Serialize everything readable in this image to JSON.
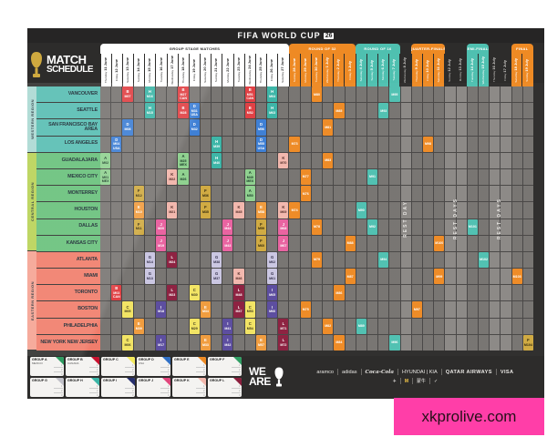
{
  "title": {
    "text": "FIFA WORLD CUP",
    "badge": "26"
  },
  "logo": {
    "line1": "MATCH",
    "line2": "SCHEDULE",
    "trophy": "fifa-world-cup-trophy"
  },
  "regions": [
    {
      "name": "WESTERN REGION",
      "rows": 4,
      "strip_color": "#a9d8d2",
      "city_color": "#55bcb1"
    },
    {
      "name": "CENTRAL REGION",
      "rows": 6,
      "strip_color": "#b8d254",
      "city_color": "#65c078"
    },
    {
      "name": "EASTERN REGION",
      "rows": 6,
      "strip_color": "#f5a291",
      "city_color": "#f07a68"
    }
  ],
  "cities": [
    "VANCOUVER",
    "SEATTLE",
    "SAN FRANCISCO BAY AREA",
    "LOS ANGELES",
    "GUADALAJARA",
    "MEXICO CITY",
    "MONTERREY",
    "HOUSTON",
    "DALLAS",
    "KANSAS CITY",
    "ATLANTA",
    "MIAMI",
    "TORONTO",
    "BOSTON",
    "PHILADELPHIA",
    "NEW YORK NEW JERSEY"
  ],
  "stages": [
    {
      "label": "GROUP STAGE MATCHES",
      "start": 0,
      "end": 16,
      "color": "#ffffff",
      "text": "#2a2a2a"
    },
    {
      "label": "ROUND OF 32",
      "start": 17,
      "end": 22,
      "color": "#ee8a24",
      "text": "#ffffff"
    },
    {
      "label": "ROUND OF 16",
      "start": 23,
      "end": 26,
      "color": "#4fc0b0",
      "text": "#ffffff"
    },
    {
      "label": "QUARTER-FINALS",
      "start": 28,
      "end": 30,
      "color": "#ee8a24",
      "text": "#ffffff"
    },
    {
      "label": "SEMI-FINALS",
      "start": 33,
      "end": 34,
      "color": "#4fc0b0",
      "text": "#ffffff"
    },
    {
      "label": "FINAL",
      "start": 37,
      "end": 38,
      "color": "#ee8a24",
      "text": "#ffffff"
    }
  ],
  "rest_labels": [
    {
      "start": 27,
      "end": 27,
      "label": "REST DAY"
    },
    {
      "start": 31,
      "end": 32,
      "label": "REST DAYS"
    },
    {
      "start": 35,
      "end": 36,
      "label": "REST DAYS"
    }
  ],
  "columns": [
    {
      "day": "Thursday",
      "date": "11 June"
    },
    {
      "day": "Friday",
      "date": "12 June"
    },
    {
      "day": "Saturday",
      "date": "13 June"
    },
    {
      "day": "Sunday",
      "date": "14 June"
    },
    {
      "day": "Monday",
      "date": "15 June"
    },
    {
      "day": "Tuesday",
      "date": "16 June"
    },
    {
      "day": "Wednesday",
      "date": "17 June"
    },
    {
      "day": "Thursday",
      "date": "18 June"
    },
    {
      "day": "Friday",
      "date": "19 June"
    },
    {
      "day": "Saturday",
      "date": "20 June"
    },
    {
      "day": "Sunday",
      "date": "21 June"
    },
    {
      "day": "Monday",
      "date": "22 June"
    },
    {
      "day": "Tuesday",
      "date": "23 June"
    },
    {
      "day": "Wednesday",
      "date": "24 June"
    },
    {
      "day": "Thursday",
      "date": "25 June"
    },
    {
      "day": "Friday",
      "date": "26 June"
    },
    {
      "day": "Saturday",
      "date": "27 June"
    },
    {
      "day": "Sunday",
      "date": "28 June"
    },
    {
      "day": "Monday",
      "date": "29 June"
    },
    {
      "day": "Tuesday",
      "date": "30 June"
    },
    {
      "day": "Wednesday",
      "date": "1 July"
    },
    {
      "day": "Thursday",
      "date": "2 July"
    },
    {
      "day": "Friday",
      "date": "3 July"
    },
    {
      "day": "Saturday",
      "date": "4 July"
    },
    {
      "day": "Sunday",
      "date": "5 July"
    },
    {
      "day": "Monday",
      "date": "6 July"
    },
    {
      "day": "Tuesday",
      "date": "7 July"
    },
    {
      "day": "Wednesday",
      "date": "8 July"
    },
    {
      "day": "Thursday",
      "date": "9 July"
    },
    {
      "day": "Friday",
      "date": "10 July"
    },
    {
      "day": "Saturday",
      "date": "11 July"
    },
    {
      "day": "Sunday",
      "date": "12 July"
    },
    {
      "day": "Monday",
      "date": "13 July"
    },
    {
      "day": "Tuesday",
      "date": "14 July"
    },
    {
      "day": "Wednesday",
      "date": "15 July"
    },
    {
      "day": "Thursday",
      "date": "16 July"
    },
    {
      "day": "Friday",
      "date": "17 July"
    },
    {
      "day": "Saturday",
      "date": "18 July"
    },
    {
      "day": "Sunday",
      "date": "19 July"
    }
  ],
  "group_colors": {
    "A": {
      "bg": "#8ed08e",
      "fg": "#143423"
    },
    "B": {
      "bg": "#e03d41",
      "fg": "#ffffff"
    },
    "C": {
      "bg": "#f2e362",
      "fg": "#3a351a"
    },
    "D": {
      "bg": "#3b7dd4",
      "fg": "#ffffff"
    },
    "E": {
      "bg": "#f09b3c",
      "fg": "#ffffff"
    },
    "F": {
      "bg": "#cfa93f",
      "fg": "#2a2208"
    },
    "G": {
      "bg": "#cac6e2",
      "fg": "#2d2a45"
    },
    "H": {
      "bg": "#3ab5a6",
      "fg": "#ffffff"
    },
    "I": {
      "bg": "#5a4b9e",
      "fg": "#ffffff"
    },
    "J": {
      "bg": "#e9619f",
      "fg": "#ffffff"
    },
    "K": {
      "bg": "#f2b7ac",
      "fg": "#4a2420"
    },
    "L": {
      "bg": "#8c1f3e",
      "fg": "#ffffff"
    },
    "R32": {
      "bg": "#ee8a24",
      "fg": "#ffffff"
    },
    "R16": {
      "bg": "#4fc0b0",
      "fg": "#ffffff"
    },
    "QF": {
      "bg": "#ee8a24",
      "fg": "#ffffff"
    },
    "SF": {
      "bg": "#4fc0b0",
      "fg": "#ffffff"
    },
    "3P": {
      "bg": "#ee8a24",
      "fg": "#ffffff"
    }
  },
  "match_format": [
    "match_no",
    "city_index",
    "date_col",
    "group_or_stage",
    "host_tag"
  ],
  "matches": [
    [
      1,
      5,
      0,
      "A",
      "MEX"
    ],
    [
      2,
      4,
      0,
      "A",
      ""
    ],
    [
      3,
      12,
      1,
      "B",
      "CAN"
    ],
    [
      4,
      3,
      1,
      "D",
      "USA"
    ],
    [
      5,
      13,
      2,
      "C",
      ""
    ],
    [
      6,
      15,
      2,
      "C",
      ""
    ],
    [
      7,
      0,
      2,
      "B",
      ""
    ],
    [
      8,
      2,
      2,
      "D",
      ""
    ],
    [
      9,
      14,
      3,
      "E",
      ""
    ],
    [
      10,
      7,
      3,
      "E",
      ""
    ],
    [
      11,
      8,
      3,
      "F",
      ""
    ],
    [
      12,
      6,
      3,
      "F",
      ""
    ],
    [
      13,
      11,
      4,
      "G",
      ""
    ],
    [
      14,
      10,
      4,
      "G",
      ""
    ],
    [
      15,
      1,
      4,
      "H",
      ""
    ],
    [
      16,
      0,
      4,
      "H",
      ""
    ],
    [
      17,
      15,
      5,
      "I",
      ""
    ],
    [
      18,
      13,
      5,
      "I",
      ""
    ],
    [
      19,
      9,
      5,
      "J",
      ""
    ],
    [
      20,
      8,
      5,
      "J",
      ""
    ],
    [
      21,
      7,
      6,
      "K",
      ""
    ],
    [
      22,
      5,
      6,
      "K",
      ""
    ],
    [
      23,
      12,
      6,
      "L",
      ""
    ],
    [
      24,
      10,
      6,
      "L",
      ""
    ],
    [
      25,
      4,
      7,
      "A",
      "MEX"
    ],
    [
      26,
      5,
      7,
      "A",
      ""
    ],
    [
      27,
      0,
      7,
      "B",
      "CAN"
    ],
    [
      28,
      1,
      7,
      "B",
      ""
    ],
    [
      29,
      14,
      8,
      "C",
      ""
    ],
    [
      30,
      12,
      8,
      "C",
      ""
    ],
    [
      31,
      1,
      8,
      "D",
      "USA"
    ],
    [
      32,
      2,
      8,
      "D",
      ""
    ],
    [
      33,
      15,
      9,
      "E",
      ""
    ],
    [
      34,
      13,
      9,
      "E",
      ""
    ],
    [
      35,
      7,
      9,
      "F",
      ""
    ],
    [
      36,
      6,
      9,
      "F",
      ""
    ],
    [
      37,
      11,
      10,
      "G",
      ""
    ],
    [
      38,
      10,
      10,
      "G",
      ""
    ],
    [
      39,
      3,
      10,
      "H",
      ""
    ],
    [
      40,
      4,
      10,
      "H",
      ""
    ],
    [
      41,
      14,
      11,
      "I",
      ""
    ],
    [
      42,
      15,
      11,
      "I",
      ""
    ],
    [
      43,
      9,
      11,
      "J",
      ""
    ],
    [
      44,
      8,
      11,
      "J",
      ""
    ],
    [
      45,
      7,
      12,
      "K",
      ""
    ],
    [
      46,
      11,
      12,
      "K",
      ""
    ],
    [
      47,
      13,
      12,
      "L",
      ""
    ],
    [
      48,
      12,
      12,
      "L",
      ""
    ],
    [
      49,
      5,
      13,
      "A",
      "MEX"
    ],
    [
      50,
      6,
      13,
      "A",
      ""
    ],
    [
      51,
      0,
      13,
      "B",
      "CAN"
    ],
    [
      52,
      1,
      13,
      "B",
      ""
    ],
    [
      53,
      13,
      13,
      "C",
      ""
    ],
    [
      54,
      14,
      13,
      "C",
      ""
    ],
    [
      55,
      3,
      14,
      "D",
      "USA"
    ],
    [
      56,
      2,
      14,
      "D",
      ""
    ],
    [
      57,
      15,
      14,
      "E",
      ""
    ],
    [
      58,
      7,
      14,
      "E",
      ""
    ],
    [
      59,
      8,
      14,
      "F",
      ""
    ],
    [
      60,
      9,
      14,
      "F",
      ""
    ],
    [
      61,
      11,
      15,
      "G",
      ""
    ],
    [
      62,
      10,
      15,
      "G",
      ""
    ],
    [
      63,
      1,
      15,
      "H",
      ""
    ],
    [
      64,
      0,
      15,
      "H",
      ""
    ],
    [
      65,
      12,
      15,
      "I",
      ""
    ],
    [
      66,
      13,
      15,
      "I",
      ""
    ],
    [
      67,
      9,
      16,
      "J",
      ""
    ],
    [
      68,
      8,
      16,
      "J",
      ""
    ],
    [
      69,
      7,
      16,
      "K",
      ""
    ],
    [
      70,
      4,
      16,
      "K",
      ""
    ],
    [
      71,
      14,
      16,
      "L",
      ""
    ],
    [
      72,
      15,
      16,
      "L",
      ""
    ],
    [
      73,
      3,
      17,
      "R32",
      ""
    ],
    [
      74,
      7,
      17,
      "R32",
      ""
    ],
    [
      75,
      13,
      18,
      "R32",
      ""
    ],
    [
      76,
      6,
      18,
      "R32",
      ""
    ],
    [
      77,
      5,
      18,
      "R32",
      ""
    ],
    [
      78,
      8,
      19,
      "R32",
      ""
    ],
    [
      79,
      10,
      19,
      "R32",
      ""
    ],
    [
      80,
      0,
      19,
      "R32",
      ""
    ],
    [
      81,
      2,
      20,
      "R32",
      ""
    ],
    [
      82,
      14,
      20,
      "R32",
      ""
    ],
    [
      83,
      4,
      20,
      "R32",
      ""
    ],
    [
      84,
      15,
      21,
      "R32",
      ""
    ],
    [
      85,
      1,
      21,
      "R32",
      ""
    ],
    [
      86,
      12,
      21,
      "R32",
      ""
    ],
    [
      87,
      11,
      22,
      "R32",
      ""
    ],
    [
      88,
      9,
      22,
      "R32",
      ""
    ],
    [
      89,
      14,
      23,
      "R16",
      ""
    ],
    [
      90,
      7,
      23,
      "R16",
      ""
    ],
    [
      91,
      5,
      24,
      "R16",
      ""
    ],
    [
      92,
      8,
      24,
      "R16",
      ""
    ],
    [
      93,
      1,
      25,
      "R16",
      ""
    ],
    [
      94,
      10,
      25,
      "R16",
      ""
    ],
    [
      95,
      0,
      26,
      "R16",
      ""
    ],
    [
      96,
      15,
      26,
      "R16",
      ""
    ],
    [
      97,
      13,
      28,
      "QF",
      ""
    ],
    [
      98,
      3,
      29,
      "QF",
      ""
    ],
    [
      99,
      11,
      30,
      "QF",
      ""
    ],
    [
      100,
      9,
      30,
      "QF",
      ""
    ],
    [
      101,
      8,
      33,
      "SF",
      ""
    ],
    [
      102,
      10,
      34,
      "SF",
      ""
    ],
    [
      103,
      11,
      37,
      "3P",
      ""
    ],
    [
      104,
      15,
      38,
      "F",
      ""
    ]
  ],
  "legend_groups": [
    {
      "name": "GROUP A",
      "note": "MEXICO",
      "fold": "#2f9e63"
    },
    {
      "name": "GROUP B",
      "note": "CANADA",
      "fold": "#c8102e"
    },
    {
      "name": "GROUP C",
      "note": "",
      "fold": "#f3ea5d"
    },
    {
      "name": "GROUP D",
      "note": "USA",
      "fold": "#2f6fc4"
    },
    {
      "name": "GROUP E",
      "note": "",
      "fold": "#ee8a24"
    },
    {
      "name": "GROUP F",
      "note": "",
      "fold": "#2f9e63"
    },
    {
      "name": "GROUP G",
      "note": "",
      "fold": "#c0c0c8"
    },
    {
      "name": "GROUP H",
      "note": "",
      "fold": "#3ab5a6"
    },
    {
      "name": "GROUP I",
      "note": "",
      "fold": "#27306e"
    },
    {
      "name": "GROUP J",
      "note": "",
      "fold": "#e0457b"
    },
    {
      "name": "GROUP K",
      "note": "",
      "fold": "#f2b7ac"
    },
    {
      "name": "GROUP L",
      "note": "",
      "fold": "#8c1f3e"
    }
  ],
  "legend_slots": [
    "1",
    "2",
    "3",
    "4"
  ],
  "footer": {
    "we_line1": "WE",
    "we_line2": "ARE",
    "sponsors_row1": [
      "aramco",
      "adidas",
      "Coca-Cola",
      "HYUNDAI | KIA",
      "QATAR AIRWAYS",
      "VISA"
    ],
    "sponsors_row2": [
      "✈",
      "M",
      "蒙牛",
      "✓"
    ]
  },
  "watermark": {
    "text": "xkprolive.com",
    "bg": "#ff3ea8"
  }
}
